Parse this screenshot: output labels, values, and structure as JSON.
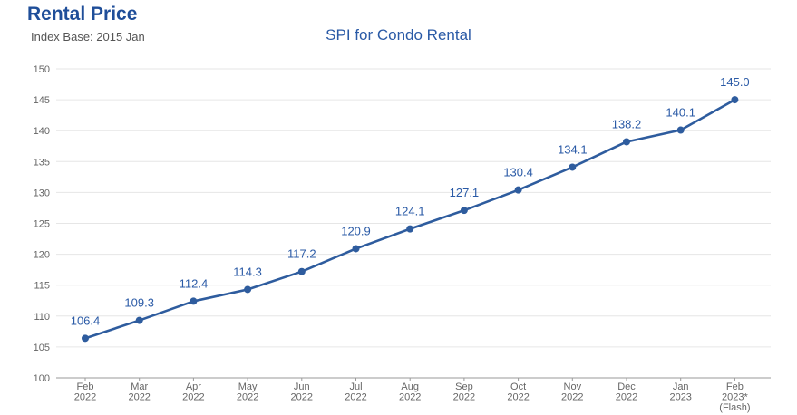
{
  "header": {
    "title": "Rental Price",
    "subtitle": "Index Base: 2015 Jan"
  },
  "colors": {
    "accent": "#2e5c9e",
    "title": "#1f4e99",
    "grid": "#e6e6e6",
    "axis": "#9a9a9a"
  },
  "chart_data": {
    "type": "line",
    "title": "SPI for Condo Rental",
    "xlabel": "",
    "ylabel": "",
    "ylim": [
      100,
      150
    ],
    "yticks": [
      100,
      105,
      110,
      115,
      120,
      125,
      130,
      135,
      140,
      145,
      150
    ],
    "grid": true,
    "categories": [
      [
        "Feb",
        "2022"
      ],
      [
        "Mar",
        "2022"
      ],
      [
        "Apr",
        "2022"
      ],
      [
        "May",
        "2022"
      ],
      [
        "Jun",
        "2022"
      ],
      [
        "Jul",
        "2022"
      ],
      [
        "Aug",
        "2022"
      ],
      [
        "Sep",
        "2022"
      ],
      [
        "Oct",
        "2022"
      ],
      [
        "Nov",
        "2022"
      ],
      [
        "Dec",
        "2022"
      ],
      [
        "Jan",
        "2023"
      ],
      [
        "Feb",
        "2023*",
        "(Flash)"
      ]
    ],
    "series": [
      {
        "values": [
          106.4,
          109.3,
          112.4,
          114.3,
          117.2,
          120.9,
          124.1,
          127.1,
          130.4,
          134.1,
          138.2,
          140.1,
          145.0
        ],
        "labels": [
          "106.4",
          "109.3",
          "112.4",
          "114.3",
          "117.2",
          "120.9",
          "124.1",
          "127.1",
          "130.4",
          "134.1",
          "138.2",
          "140.1",
          "145.0"
        ]
      }
    ]
  }
}
